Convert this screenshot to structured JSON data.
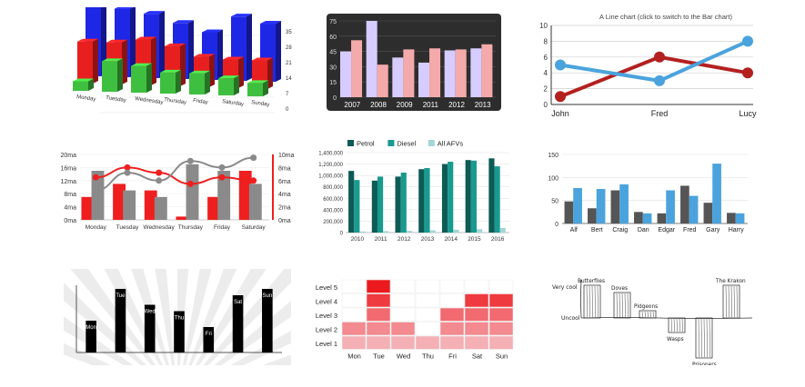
{
  "chart_data": [
    {
      "id": "c1",
      "type": "bar",
      "variant": "3d-grouped",
      "categories": [
        "Monday",
        "Tuesday",
        "Wednesday",
        "Thursday",
        "Friday",
        "Saturday",
        "Sunday"
      ],
      "series": [
        {
          "name": "blue",
          "values": [
            35,
            33,
            31,
            27,
            23,
            31,
            28
          ]
        },
        {
          "name": "red",
          "values": [
            22,
            22,
            24,
            21,
            16,
            15,
            15
          ]
        },
        {
          "name": "green",
          "values": [
            5,
            16,
            14,
            11,
            11,
            9,
            7
          ]
        }
      ],
      "ylim": [
        0,
        35
      ],
      "yticks": [
        "35",
        "28",
        "21",
        "14",
        "7",
        "0"
      ],
      "colors": [
        "#1f27e6",
        "#e81f1f",
        "#3fbf3f"
      ]
    },
    {
      "id": "c2",
      "type": "bar",
      "categories": [
        "2007",
        "2008",
        "2009",
        "2011",
        "2012",
        "2013"
      ],
      "series": [
        {
          "name": "lavender",
          "values": [
            45,
            75,
            39,
            34,
            46,
            48
          ]
        },
        {
          "name": "pink",
          "values": [
            56,
            32,
            47,
            48,
            47,
            52
          ]
        }
      ],
      "ylim": [
        0,
        75
      ],
      "yticks": [
        "75",
        "60",
        "45",
        "30",
        "15",
        "0"
      ],
      "colors": [
        "#d6ccff",
        "#f4aaaa"
      ]
    },
    {
      "id": "c3",
      "type": "line",
      "title": "A Line chart (click to switch to the Bar chart)",
      "categories": [
        "John",
        "Fred",
        "Lucy"
      ],
      "series": [
        {
          "name": "red",
          "values": [
            1,
            6,
            4
          ]
        },
        {
          "name": "blue",
          "values": [
            5,
            3,
            8
          ]
        }
      ],
      "ylim": [
        0,
        10
      ],
      "yticks": [
        "10",
        "8",
        "6",
        "4",
        "2",
        "0"
      ],
      "colors": [
        "#b3201f",
        "#4aa3dd"
      ]
    },
    {
      "id": "c4",
      "type": "bar-line",
      "categories": [
        "Monday",
        "Tuesday",
        "Wednesday",
        "Thursday",
        "Friday",
        "Saturday"
      ],
      "bars": [
        {
          "name": "red",
          "values": [
            3.5,
            5.5,
            4.5,
            0.5,
            3.5,
            7.5
          ]
        },
        {
          "name": "gray",
          "values": [
            7.5,
            4.5,
            3.5,
            8.5,
            7.5,
            5.5
          ]
        }
      ],
      "lines": [
        {
          "name": "red",
          "values": [
            6.5,
            8,
            7.2,
            5.5,
            6.5,
            6
          ]
        },
        {
          "name": "gray",
          "values": [
            4.5,
            7.2,
            6,
            9,
            8,
            9.5
          ]
        }
      ],
      "ylim": [
        0,
        10
      ],
      "yticks_left": [
        "20ma",
        "16ma",
        "12ma",
        "8ma",
        "4ma",
        "0ma"
      ],
      "yticks_right": [
        "10ma",
        "8ma",
        "6ma",
        "4ma",
        "2ma",
        "0ma"
      ],
      "colors": [
        "#ef1f1f",
        "#8a8a8a"
      ]
    },
    {
      "id": "c5",
      "type": "bar",
      "legend": [
        "Petrol",
        "Diesel",
        "All AFVs"
      ],
      "categories": [
        "2010",
        "2011",
        "2012",
        "2013",
        "2014",
        "2015",
        "2016"
      ],
      "series": [
        {
          "name": "Petrol",
          "values": [
            1080000,
            910000,
            980000,
            1110000,
            1200000,
            1270000,
            1300000
          ]
        },
        {
          "name": "Diesel",
          "values": [
            920000,
            980000,
            1050000,
            1130000,
            1240000,
            1260000,
            1160000
          ]
        },
        {
          "name": "All AFVs",
          "values": [
            20000,
            25000,
            30000,
            40000,
            50000,
            60000,
            80000
          ]
        }
      ],
      "ylim": [
        0,
        1400000
      ],
      "yticks": [
        "1,400,000",
        "1,200,000",
        "1,000,000",
        "800,000",
        "600,000",
        "400,000",
        "200,000",
        "0"
      ],
      "colors": [
        "#0e5a55",
        "#199a8f",
        "#a3d6d6"
      ]
    },
    {
      "id": "c6",
      "type": "bar",
      "categories": [
        "Alf",
        "Bert",
        "Craig",
        "Dan",
        "Edgar",
        "Fred",
        "Gary",
        "Harry"
      ],
      "series": [
        {
          "name": "gray",
          "values": [
            48,
            33,
            72,
            25,
            22,
            82,
            45,
            23
          ]
        },
        {
          "name": "blue",
          "values": [
            77,
            75,
            85,
            22,
            72,
            60,
            130,
            22
          ]
        }
      ],
      "ylim": [
        0,
        150
      ],
      "yticks": [
        "150",
        "100",
        "50",
        "0"
      ],
      "colors": [
        "#555555",
        "#4aa3dd"
      ]
    },
    {
      "id": "c7",
      "type": "bar",
      "categories": [
        "Mon",
        "Tue",
        "Wed",
        "Thu",
        "Fri",
        "Sat",
        "Sun"
      ],
      "values": [
        5,
        10,
        7.5,
        6.5,
        4,
        9,
        10
      ],
      "ylim": [
        0,
        12
      ],
      "colors": [
        "#000000"
      ]
    },
    {
      "id": "c8",
      "type": "heatmap",
      "categories": [
        "Mon",
        "Tue",
        "Wed",
        "Thu",
        "Fri",
        "Sat",
        "Sun"
      ],
      "levels": [
        "Level 5",
        "Level 4",
        "Level 3",
        "Level 2",
        "Level 1"
      ],
      "values": [
        2,
        5,
        2,
        1,
        3,
        4,
        4
      ],
      "colors": [
        "#f4b0b4",
        "#f28a90",
        "#f06a70",
        "#ef3a3f",
        "#ec1a1f"
      ]
    },
    {
      "id": "c9",
      "type": "bar",
      "variant": "hand-drawn",
      "ylabels": [
        "Very cool",
        "Uncool"
      ],
      "points": [
        {
          "label": "Butterflies",
          "value": 9
        },
        {
          "label": "Doves",
          "value": 7
        },
        {
          "label": "Pidgeons",
          "value": 2
        },
        {
          "label": "Wasps",
          "value": -4
        },
        {
          "label": "Prisoners",
          "value": -11
        },
        {
          "label": "The Krakon",
          "value": 9
        }
      ],
      "ylim": [
        -12,
        10
      ]
    }
  ]
}
